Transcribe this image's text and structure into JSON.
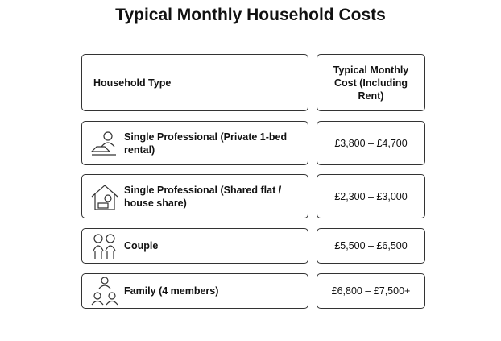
{
  "title": "Typical Monthly Household Costs",
  "table": {
    "header": [
      "Household Type",
      "Typical Monthly Cost (Including Rent)"
    ],
    "rows": [
      [
        "Single Professional (Private 1-bed rental)",
        "£3,800 – £4,700"
      ],
      [
        "Single Professional (Shared flat / house share)",
        "£2,300 – £3,000"
      ],
      [
        "Couple",
        "£5,500 – £6,500"
      ],
      [
        "Family (4 members)",
        "£6,800 – £7,500+"
      ]
    ]
  }
}
